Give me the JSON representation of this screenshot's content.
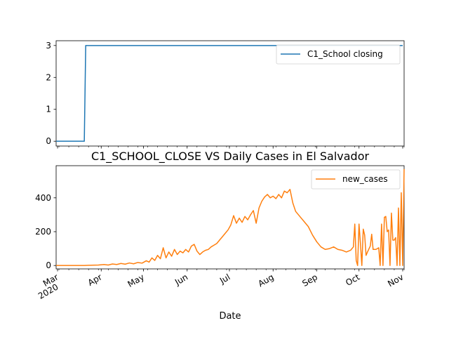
{
  "chart_data": [
    {
      "type": "line",
      "title": "",
      "xlabel": "",
      "ylabel": "",
      "ylim": [
        -0.15,
        3.15
      ],
      "yticks": [
        0,
        1,
        2,
        3
      ],
      "legend": {
        "placement": "top-right"
      },
      "grid": false,
      "series": [
        {
          "name": "C1_School closing",
          "color": "#1f77b4",
          "points": [
            [
              "2020-02-29",
              0
            ],
            [
              "2020-03-20",
              0
            ],
            [
              "2020-03-21",
              3
            ],
            [
              "2020-11-01",
              3
            ]
          ]
        }
      ]
    },
    {
      "type": "line",
      "title": "C1_SCHOOL_CLOSE VS Daily Cases in El Salvador",
      "xlabel": "Date",
      "ylabel": "",
      "ylim": [
        -20,
        590
      ],
      "yticks": [
        0,
        200,
        400
      ],
      "legend": {
        "placement": "top-right"
      },
      "grid": false,
      "x_tick_labels": [
        {
          "date": "2020-03-01",
          "label": "Mar",
          "sub": "2020"
        },
        {
          "date": "2020-04-01",
          "label": "Apr"
        },
        {
          "date": "2020-05-01",
          "label": "May"
        },
        {
          "date": "2020-06-01",
          "label": "Jun"
        },
        {
          "date": "2020-07-01",
          "label": "Jul"
        },
        {
          "date": "2020-08-01",
          "label": "Aug"
        },
        {
          "date": "2020-09-01",
          "label": "Sep"
        },
        {
          "date": "2020-10-01",
          "label": "Oct"
        },
        {
          "date": "2020-11-01",
          "label": "Nov"
        }
      ],
      "series": [
        {
          "name": "new_cases",
          "color": "#ff7f0e",
          "points": [
            [
              "2020-02-29",
              0
            ],
            [
              "2020-03-20",
              0
            ],
            [
              "2020-03-25",
              2
            ],
            [
              "2020-03-30",
              3
            ],
            [
              "2020-04-03",
              6
            ],
            [
              "2020-04-06",
              3
            ],
            [
              "2020-04-09",
              9
            ],
            [
              "2020-04-12",
              6
            ],
            [
              "2020-04-15",
              12
            ],
            [
              "2020-04-18",
              8
            ],
            [
              "2020-04-21",
              15
            ],
            [
              "2020-04-24",
              10
            ],
            [
              "2020-04-27",
              18
            ],
            [
              "2020-04-30",
              14
            ],
            [
              "2020-05-03",
              28
            ],
            [
              "2020-05-05",
              20
            ],
            [
              "2020-05-07",
              45
            ],
            [
              "2020-05-09",
              30
            ],
            [
              "2020-05-11",
              60
            ],
            [
              "2020-05-13",
              40
            ],
            [
              "2020-05-15",
              105
            ],
            [
              "2020-05-17",
              45
            ],
            [
              "2020-05-19",
              80
            ],
            [
              "2020-05-21",
              55
            ],
            [
              "2020-05-23",
              95
            ],
            [
              "2020-05-25",
              65
            ],
            [
              "2020-05-27",
              85
            ],
            [
              "2020-05-29",
              75
            ],
            [
              "2020-05-31",
              95
            ],
            [
              "2020-06-02",
              80
            ],
            [
              "2020-06-04",
              115
            ],
            [
              "2020-06-06",
              125
            ],
            [
              "2020-06-08",
              85
            ],
            [
              "2020-06-10",
              65
            ],
            [
              "2020-06-12",
              80
            ],
            [
              "2020-06-14",
              90
            ],
            [
              "2020-06-16",
              95
            ],
            [
              "2020-06-18",
              110
            ],
            [
              "2020-06-20",
              120
            ],
            [
              "2020-06-22",
              130
            ],
            [
              "2020-06-24",
              150
            ],
            [
              "2020-06-26",
              170
            ],
            [
              "2020-06-28",
              190
            ],
            [
              "2020-06-30",
              210
            ],
            [
              "2020-07-02",
              240
            ],
            [
              "2020-07-04",
              295
            ],
            [
              "2020-07-06",
              250
            ],
            [
              "2020-07-08",
              280
            ],
            [
              "2020-07-10",
              255
            ],
            [
              "2020-07-12",
              290
            ],
            [
              "2020-07-14",
              270
            ],
            [
              "2020-07-16",
              300
            ],
            [
              "2020-07-18",
              325
            ],
            [
              "2020-07-20",
              250
            ],
            [
              "2020-07-22",
              340
            ],
            [
              "2020-07-24",
              380
            ],
            [
              "2020-07-26",
              405
            ],
            [
              "2020-07-28",
              420
            ],
            [
              "2020-07-30",
              400
            ],
            [
              "2020-08-01",
              410
            ],
            [
              "2020-08-03",
              395
            ],
            [
              "2020-08-05",
              420
            ],
            [
              "2020-08-07",
              400
            ],
            [
              "2020-08-09",
              440
            ],
            [
              "2020-08-11",
              430
            ],
            [
              "2020-08-13",
              450
            ],
            [
              "2020-08-15",
              370
            ],
            [
              "2020-08-17",
              320
            ],
            [
              "2020-08-20",
              290
            ],
            [
              "2020-08-23",
              260
            ],
            [
              "2020-08-26",
              230
            ],
            [
              "2020-08-29",
              180
            ],
            [
              "2020-09-01",
              140
            ],
            [
              "2020-09-04",
              110
            ],
            [
              "2020-09-07",
              95
            ],
            [
              "2020-09-10",
              100
            ],
            [
              "2020-09-13",
              110
            ],
            [
              "2020-09-16",
              95
            ],
            [
              "2020-09-19",
              90
            ],
            [
              "2020-09-22",
              80
            ],
            [
              "2020-09-25",
              90
            ],
            [
              "2020-09-27",
              110
            ],
            [
              "2020-09-28",
              245
            ],
            [
              "2020-09-29",
              30
            ],
            [
              "2020-09-30",
              0
            ],
            [
              "2020-10-01",
              245
            ],
            [
              "2020-10-02",
              130
            ],
            [
              "2020-10-03",
              0
            ],
            [
              "2020-10-04",
              215
            ],
            [
              "2020-10-05",
              180
            ],
            [
              "2020-10-06",
              60
            ],
            [
              "2020-10-07",
              80
            ],
            [
              "2020-10-09",
              115
            ],
            [
              "2020-10-10",
              185
            ],
            [
              "2020-10-11",
              95
            ],
            [
              "2020-10-13",
              95
            ],
            [
              "2020-10-15",
              105
            ],
            [
              "2020-10-16",
              0
            ],
            [
              "2020-10-17",
              245
            ],
            [
              "2020-10-18",
              0
            ],
            [
              "2020-10-19",
              285
            ],
            [
              "2020-10-20",
              290
            ],
            [
              "2020-10-21",
              200
            ],
            [
              "2020-10-22",
              210
            ],
            [
              "2020-10-23",
              0
            ],
            [
              "2020-10-24",
              310
            ],
            [
              "2020-10-25",
              150
            ],
            [
              "2020-10-26",
              150
            ],
            [
              "2020-10-27",
              165
            ],
            [
              "2020-10-28",
              0
            ],
            [
              "2020-10-29",
              340
            ],
            [
              "2020-10-30",
              0
            ],
            [
              "2020-10-31",
              430
            ],
            [
              "2020-11-01",
              0
            ],
            [
              "2020-11-02",
              570
            ]
          ]
        }
      ]
    }
  ]
}
